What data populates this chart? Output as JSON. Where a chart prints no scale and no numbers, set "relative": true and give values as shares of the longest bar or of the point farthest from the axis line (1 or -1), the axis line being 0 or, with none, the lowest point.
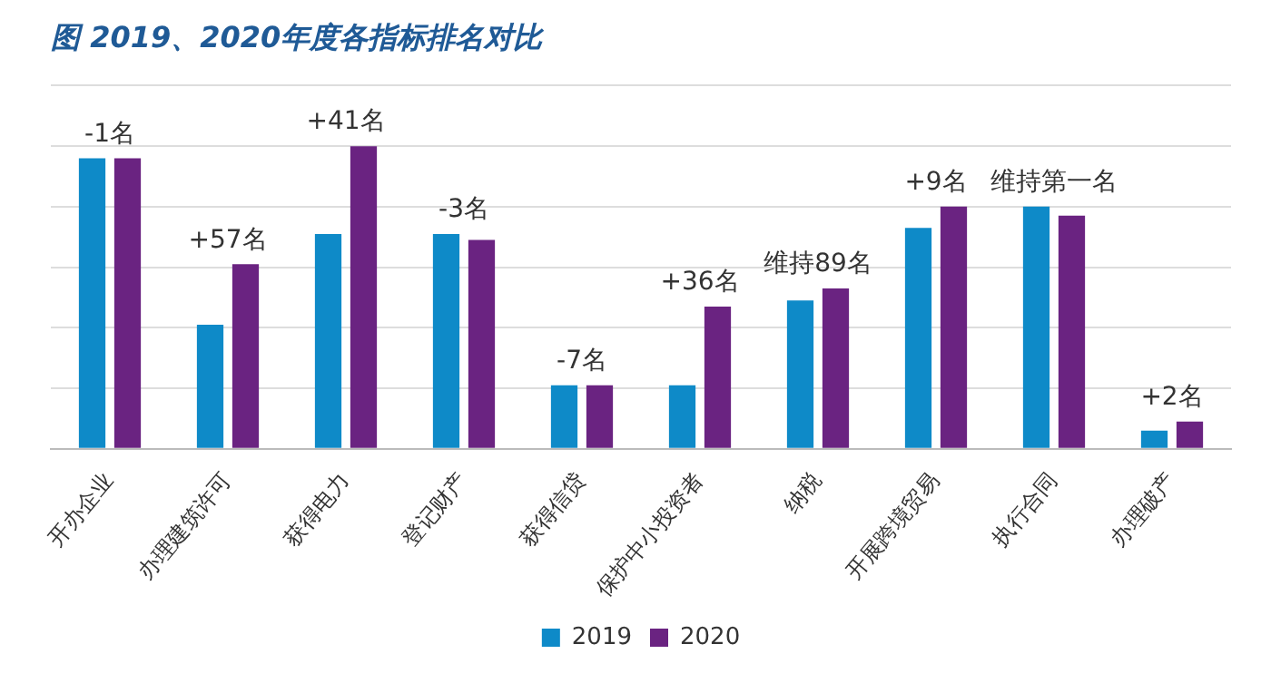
{
  "chart_data": {
    "type": "bar",
    "title": "图 2019、2020年度各指标排名对比",
    "relative": true,
    "grid": "y",
    "legend": "bottom",
    "categories": [
      "开办企业",
      "办理建筑许可",
      "获得电力",
      "登记财产",
      "获得信贷",
      "保护中小投资者",
      "纳税",
      "开展跨境贸易",
      "执行合同",
      "办理破产"
    ],
    "series": [
      {
        "name": "2019",
        "color": "#0e8ac8",
        "values": [
          0.96,
          0.41,
          0.71,
          0.71,
          0.21,
          0.21,
          0.49,
          0.73,
          0.8,
          0.06
        ]
      },
      {
        "name": "2020",
        "color": "#6a2381",
        "values": [
          0.96,
          0.61,
          1,
          0.69,
          0.21,
          0.47,
          0.53,
          0.8,
          0.77,
          0.09
        ]
      }
    ],
    "annotations": [
      {
        "text": "-1名",
        "x": "开办企业",
        "y": 0.96
      },
      {
        "text": "+57名",
        "x": "办理建筑许可",
        "y": 0.61
      },
      {
        "text": "+41名",
        "x": "获得电力",
        "y": 1
      },
      {
        "text": "-3名",
        "x": "登记财产",
        "y": 0.71
      },
      {
        "text": "-7名",
        "x": "获得信贷",
        "y": 0.21
      },
      {
        "text": "+36名",
        "x": "保护中小投资者",
        "y": 0.47
      },
      {
        "text": "维持89名",
        "x": "纳税",
        "y": 0.53
      },
      {
        "text": "+9名",
        "x": "开展跨境贸易",
        "y": 0.8
      },
      {
        "text": "维持第一名",
        "x": "执行合同",
        "y": 0.8
      },
      {
        "text": "+2名",
        "x": "办理破产",
        "y": 0.09
      }
    ]
  }
}
